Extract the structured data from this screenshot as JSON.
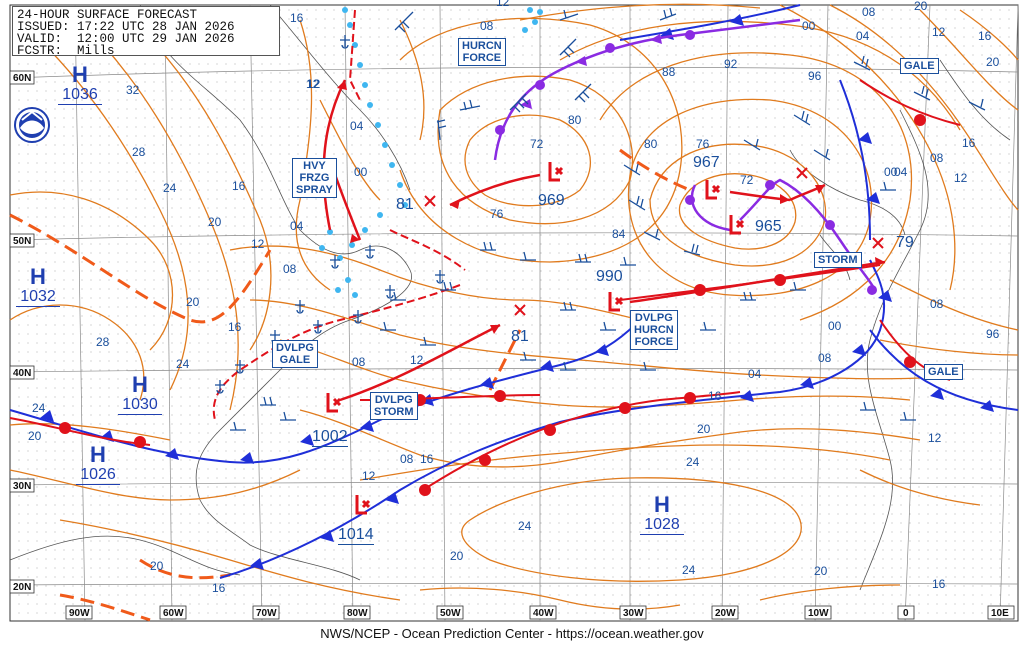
{
  "header": {
    "line1": "24-HOUR SURFACE FORECAST",
    "line2": "ISSUED: 17:22 UTC 28 JAN 2026",
    "line3": "VALID:  12:00 UTC 29 JAN 2026",
    "line4": "FCSTR:  Mills"
  },
  "footer": "NWS/NCEP - Ocean Prediction Center - https://ocean.weather.gov",
  "logo": "noaa-logo-icon",
  "colors": {
    "isobar": "#e07b1e",
    "label_blue": "#1a4f9c",
    "high_blue": "#1f3fb0",
    "low_red": "#e0121b",
    "cold_front": "#1f2fd8",
    "warm_front": "#e0121b",
    "occluded": "#8a2be2",
    "trough": "#f05a1a",
    "freezing_spray": "#3fb6f0"
  },
  "latitude_labels": [
    "60N",
    "50N",
    "40N",
    "30N",
    "20N"
  ],
  "longitude_labels": [
    "90W",
    "80W",
    "70W",
    "60W",
    "50W",
    "40W",
    "30W",
    "20W",
    "10W",
    "0",
    "10E"
  ],
  "highs": [
    {
      "letter": "H",
      "value": "1036"
    },
    {
      "letter": "H",
      "value": "1032"
    },
    {
      "letter": "H",
      "value": "1030"
    },
    {
      "letter": "H",
      "value": "1026"
    },
    {
      "letter": "H",
      "value": "1028"
    }
  ],
  "lows": [
    {
      "value": "969"
    },
    {
      "value": "967"
    },
    {
      "value": "965"
    },
    {
      "value": "990"
    },
    {
      "value": "1002"
    },
    {
      "value": "1014"
    }
  ],
  "forecast_positions": [
    "81",
    "81",
    "79"
  ],
  "warning_labels": {
    "hurcn_force_1": [
      "HURCN",
      "FORCE"
    ],
    "hvy_frzg_spray": [
      "HVY",
      "FRZG",
      "SPRAY"
    ],
    "dvlpg_gale": [
      "DVLPG",
      "GALE"
    ],
    "dvlpg_storm": [
      "DVLPG",
      "STORM"
    ],
    "dvlpg_hurcn_force": [
      "DVLPG",
      "HURCN",
      "FORCE"
    ],
    "storm": [
      "STORM"
    ],
    "gale_1": [
      "GALE"
    ],
    "gale_2": [
      "GALE"
    ]
  },
  "isobar_labels": [
    "32",
    "28",
    "24",
    "20",
    "16",
    "12",
    "16",
    "12",
    "08",
    "04",
    "00",
    "04",
    "08",
    "12",
    "16",
    "20",
    "24",
    "20",
    "28",
    "24",
    "20",
    "16",
    "08",
    "12",
    "16",
    "20",
    "24",
    "24",
    "24",
    "20",
    "16",
    "20",
    "16",
    "12",
    "08",
    "04",
    "00",
    "96",
    "08",
    "12",
    "16",
    "20",
    "88",
    "92",
    "96",
    "00",
    "04",
    "08",
    "12",
    "16",
    "20",
    "80",
    "76",
    "72",
    "72",
    "76",
    "80",
    "84",
    "04",
    "08",
    "00",
    "08",
    "12",
    "12"
  ]
}
